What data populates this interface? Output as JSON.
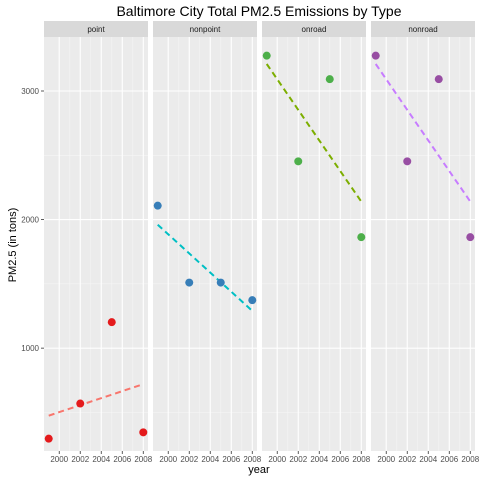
{
  "chart_data": {
    "type": "scatter",
    "title": "Baltimore City Total PM2.5 Emissions by Type",
    "xlabel": "year",
    "ylabel": "PM2.5 (in tons)",
    "xlim": [
      1998.55,
      2008.45
    ],
    "ylim": [
      200,
      3420
    ],
    "x_ticks": [
      2000,
      2002,
      2004,
      2006,
      2008
    ],
    "y_ticks": [
      1000,
      2000,
      3000
    ],
    "grid": true,
    "legend": "none",
    "panels": [
      {
        "name": "point",
        "color": "#e41a1c",
        "trend_color": "#f8766d",
        "points": [
          {
            "x": 1999,
            "y": 296
          },
          {
            "x": 2002,
            "y": 569
          },
          {
            "x": 2005,
            "y": 1202
          },
          {
            "x": 2008,
            "y": 345
          }
        ],
        "trend": {
          "x": [
            1999,
            2008
          ],
          "y": [
            475,
            720
          ]
        }
      },
      {
        "name": "nonpoint",
        "color": "#377eb8",
        "trend_color": "#00bfc4",
        "points": [
          {
            "x": 1999,
            "y": 2108
          },
          {
            "x": 2002,
            "y": 1510
          },
          {
            "x": 2005,
            "y": 1510
          },
          {
            "x": 2008,
            "y": 1373
          }
        ],
        "trend": {
          "x": [
            1999,
            2008
          ],
          "y": [
            1960,
            1290
          ]
        }
      },
      {
        "name": "onroad",
        "color": "#4daf4a",
        "trend_color": "#7cae00",
        "points": [
          {
            "x": 1999,
            "y": 3275
          },
          {
            "x": 2002,
            "y": 2453
          },
          {
            "x": 2005,
            "y": 3092
          },
          {
            "x": 2008,
            "y": 1863
          }
        ],
        "trend": {
          "x": [
            1999,
            2008
          ],
          "y": [
            3210,
            2140
          ]
        }
      },
      {
        "name": "nonroad",
        "color": "#984ea3",
        "trend_color": "#c77cff",
        "points": [
          {
            "x": 1999,
            "y": 3275
          },
          {
            "x": 2002,
            "y": 2453
          },
          {
            "x": 2005,
            "y": 3092
          },
          {
            "x": 2008,
            "y": 1863
          }
        ],
        "trend": {
          "x": [
            1999,
            2008
          ],
          "y": [
            3210,
            2140
          ]
        }
      }
    ]
  }
}
